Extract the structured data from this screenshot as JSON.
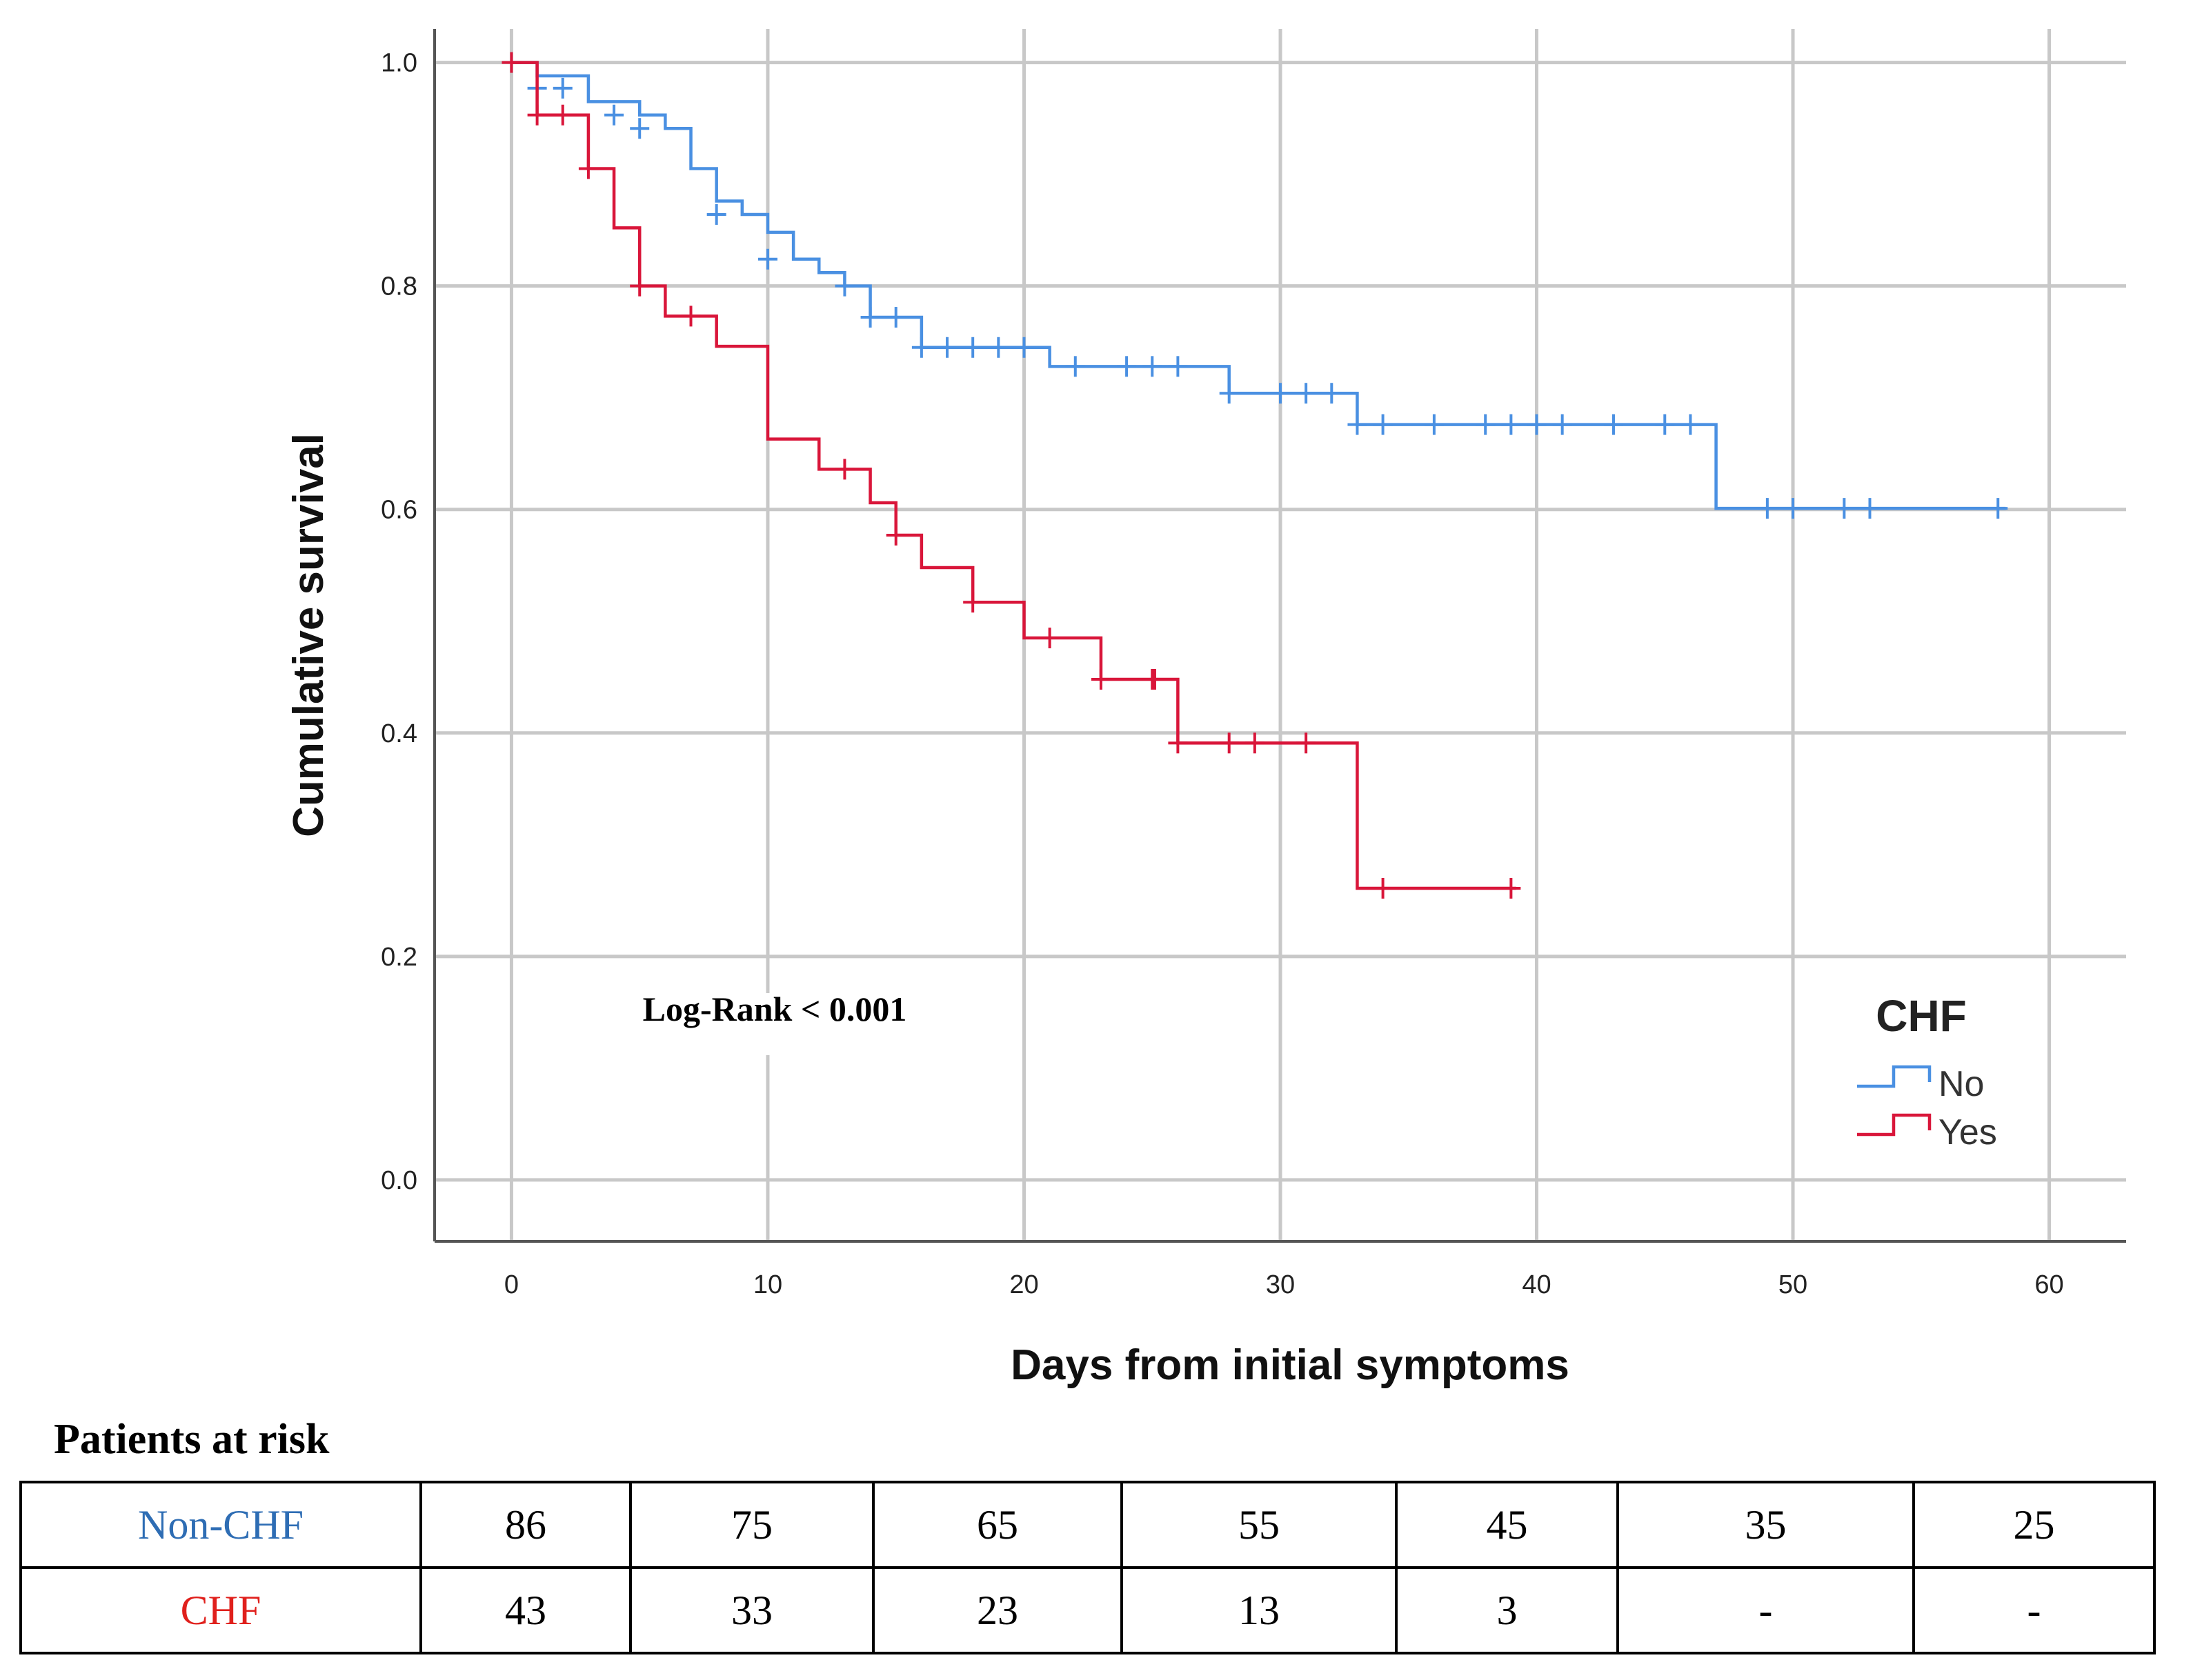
{
  "chart_data": {
    "type": "line",
    "subtype": "kaplan-meier",
    "title": "",
    "xlabel": "Days from initial symptoms",
    "ylabel": "Cumulative survival",
    "xlim": [
      -3,
      63
    ],
    "ylim": [
      -0.055,
      1.03
    ],
    "xticks": [
      "0",
      "10",
      "20",
      "30",
      "40",
      "50",
      "60"
    ],
    "yticks": [
      "0.0",
      "0.2",
      "0.4",
      "0.6",
      "0.8",
      "1.0"
    ],
    "grid": true,
    "legend": {
      "title": "CHF",
      "position": "bottom-right"
    },
    "annotation": "Log-Rank < 0.001",
    "series": [
      {
        "name": "No",
        "color": "#4a90e2",
        "steps": [
          [
            0,
            1.0
          ],
          [
            1,
            0.988
          ],
          [
            3,
            0.965
          ],
          [
            5,
            0.953
          ],
          [
            6,
            0.941
          ],
          [
            7,
            0.905
          ],
          [
            8,
            0.876
          ],
          [
            9,
            0.864
          ],
          [
            10,
            0.848
          ],
          [
            11,
            0.824
          ],
          [
            12,
            0.812
          ],
          [
            13,
            0.8
          ],
          [
            14,
            0.788
          ],
          [
            16,
            0.76
          ],
          [
            21,
            0.744
          ],
          [
            28,
            0.724
          ],
          [
            33,
            0.7
          ],
          [
            47,
            0.675
          ]
        ],
        "steps_note": "before-drop values; see drops",
        "drops": [
          [
            1,
            0.988
          ],
          [
            3,
            0.965
          ],
          [
            5,
            0.953
          ],
          [
            6,
            0.941
          ],
          [
            7,
            0.905
          ],
          [
            8,
            0.876
          ],
          [
            9,
            0.864
          ],
          [
            10,
            0.848
          ],
          [
            11,
            0.824
          ],
          [
            12,
            0.812
          ],
          [
            13,
            0.8
          ],
          [
            14,
            0.772
          ],
          [
            16,
            0.745
          ],
          [
            21,
            0.728
          ],
          [
            28,
            0.704
          ],
          [
            33,
            0.676
          ],
          [
            47,
            0.601
          ]
        ],
        "censors": [
          [
            1,
            0.977
          ],
          [
            2,
            0.977
          ],
          [
            4,
            0.953
          ],
          [
            5,
            0.941
          ],
          [
            8,
            0.864
          ],
          [
            10,
            0.824
          ],
          [
            13,
            0.8
          ],
          [
            14,
            0.772
          ],
          [
            15,
            0.772
          ],
          [
            16,
            0.745
          ],
          [
            17,
            0.745
          ],
          [
            18,
            0.745
          ],
          [
            19,
            0.745
          ],
          [
            20,
            0.745
          ],
          [
            22,
            0.728
          ],
          [
            24,
            0.728
          ],
          [
            25,
            0.728
          ],
          [
            26,
            0.728
          ],
          [
            28,
            0.704
          ],
          [
            30,
            0.704
          ],
          [
            31,
            0.704
          ],
          [
            32,
            0.704
          ],
          [
            33,
            0.676
          ],
          [
            34,
            0.676
          ],
          [
            36,
            0.676
          ],
          [
            38,
            0.676
          ],
          [
            39,
            0.676
          ],
          [
            40,
            0.676
          ],
          [
            41,
            0.676
          ],
          [
            43,
            0.676
          ],
          [
            45,
            0.676
          ],
          [
            46,
            0.676
          ],
          [
            49,
            0.601
          ],
          [
            50,
            0.601
          ],
          [
            52,
            0.601
          ],
          [
            53,
            0.601
          ],
          [
            58,
            0.601
          ]
        ],
        "end": 58.3
      },
      {
        "name": "Yes",
        "color": "#d9163a",
        "drops": [
          [
            1,
            0.953
          ],
          [
            3,
            0.905
          ],
          [
            4,
            0.852
          ],
          [
            5,
            0.8
          ],
          [
            6,
            0.773
          ],
          [
            8,
            0.746
          ],
          [
            10,
            0.663
          ],
          [
            12,
            0.636
          ],
          [
            14,
            0.606
          ],
          [
            15,
            0.577
          ],
          [
            16,
            0.548
          ],
          [
            18,
            0.517
          ],
          [
            20,
            0.485
          ],
          [
            23,
            0.448
          ],
          [
            26,
            0.391
          ],
          [
            33,
            0.261
          ]
        ],
        "censors": [
          [
            0,
            1.0
          ],
          [
            1,
            0.953
          ],
          [
            2,
            0.953
          ],
          [
            3,
            0.905
          ],
          [
            5,
            0.8
          ],
          [
            7,
            0.773
          ],
          [
            13,
            0.636
          ],
          [
            15,
            0.577
          ],
          [
            18,
            0.517
          ],
          [
            21,
            0.485
          ],
          [
            23,
            0.448
          ],
          [
            25,
            0.448
          ],
          [
            25.1,
            0.448
          ],
          [
            26,
            0.391
          ],
          [
            28,
            0.391
          ],
          [
            29,
            0.391
          ],
          [
            31,
            0.391
          ],
          [
            34,
            0.261
          ],
          [
            39,
            0.261
          ]
        ],
        "end": 39.2
      }
    ]
  },
  "risk_table": {
    "title": "Patients at risk",
    "rows": [
      {
        "label": "Non-CHF",
        "label_color": "#2e6db4",
        "values": [
          "86",
          "75",
          "65",
          "55",
          "45",
          "35",
          "25"
        ]
      },
      {
        "label": "CHF",
        "label_color": "#e0201c",
        "values": [
          "43",
          "33",
          "23",
          "13",
          "3",
          "-",
          "-"
        ]
      }
    ]
  }
}
